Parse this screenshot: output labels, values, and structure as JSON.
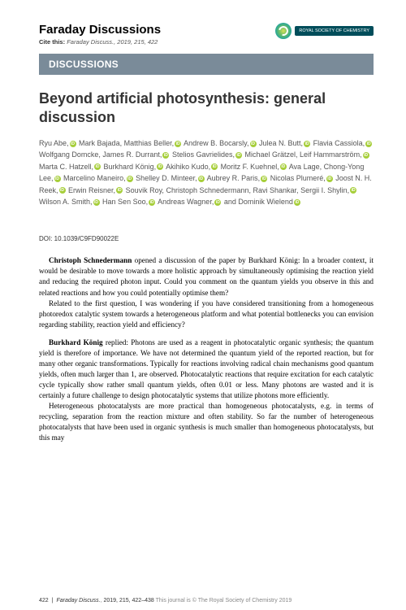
{
  "header": {
    "journal": "Faraday Discussions",
    "cite_prefix": "Cite this:",
    "cite_ref": "Faraday Discuss., 2019, 215, 422",
    "logo_text": "ROYAL SOCIETY\nOF CHEMISTRY"
  },
  "section_label": "DISCUSSIONS",
  "title": "Beyond artificial photosynthesis: general discussion",
  "authors": [
    {
      "n": "Ryu Abe",
      "o": true
    },
    {
      "n": "Mark Bajada"
    },
    {
      "n": "Matthias Beller",
      "o": true
    },
    {
      "n": "Andrew B. Bocarsly",
      "o": true
    },
    {
      "n": "Julea N. Butt",
      "o": true
    },
    {
      "n": "Flavia Cassiola",
      "o": true
    },
    {
      "n": "Wolfgang Domcke"
    },
    {
      "n": "James R. Durrant",
      "o": true
    },
    {
      "n": "Stelios Gavrielides",
      "o": true
    },
    {
      "n": "Michael Grätzel"
    },
    {
      "n": "Leif Hammarström",
      "o": true
    },
    {
      "n": "Marta C. Hatzell",
      "o": true
    },
    {
      "n": "Burkhard König",
      "o": true
    },
    {
      "n": "Akihiko Kudo",
      "o": true
    },
    {
      "n": "Moritz F. Kuehnel",
      "o": true
    },
    {
      "n": "Ava Lage"
    },
    {
      "n": "Chong-Yong Lee",
      "o": true
    },
    {
      "n": "Marcelino Maneiro",
      "o": true
    },
    {
      "n": "Shelley D. Minteer",
      "o": true
    },
    {
      "n": "Aubrey R. Paris",
      "o": true
    },
    {
      "n": "Nicolas Plumeré",
      "o": true
    },
    {
      "n": "Joost N. H. Reek",
      "o": true
    },
    {
      "n": "Erwin Reisner",
      "o": true
    },
    {
      "n": "Souvik Roy"
    },
    {
      "n": "Christoph Schnedermann"
    },
    {
      "n": "Ravi Shankar"
    },
    {
      "n": "Sergii I. Shylin",
      "o": true
    },
    {
      "n": "Wilson A. Smith",
      "o": true
    },
    {
      "n": "Han Sen Soo",
      "o": true
    },
    {
      "n": "Andreas Wagner",
      "o": true
    },
    {
      "n": "and Dominik Wielend",
      "o": true,
      "last": true
    }
  ],
  "doi": "DOI: 10.1039/C9FD90022E",
  "paragraphs": {
    "p1_lead": "Christoph Schnedermann",
    "p1": " opened a discussion of the paper by Burkhard König: In a broader context, it would be desirable to move towards a more holistic approach by simultaneously optimising the reaction yield and reducing the required photon input. Could you comment on the quantum yields you observe in this and related reactions and how you could potentially optimise them?",
    "p2": "Related to the first question, I was wondering if you have considered transitioning from a homogeneous photoredox catalytic system towards a heterogeneous platform and what potential bottlenecks you can envision regarding stability, reaction yield and efficiency?",
    "p3_lead": "Burkhard König",
    "p3": " replied: Photons are used as a reagent in photocatalytic organic synthesis; the quantum yield is therefore of importance. We have not determined the quantum yield of the reported reaction, but for many other organic transformations. Typically for reactions involving radical chain mechanisms good quantum yields, often much larger than 1, are observed. Photocatalytic reactions that require excitation for each catalytic cycle typically show rather small quantum yields, often 0.01 or less. Many photons are wasted and it is certainly a future challenge to design photocatalytic systems that utilize photons more efficiently.",
    "p4": "Heterogeneous photocatalysts are more practical than homogeneous photocatalysts, e.g. in terms of recycling, separation from the reaction mixture and often stability. So far the number of heterogeneous photocatalysts that have been used in organic synthesis is much smaller than homogeneous photocatalysts, but this may"
  },
  "footer": {
    "page": "422",
    "journal": "Faraday Discuss.",
    "ref": "2019, 215, 422–438",
    "copyright": "This journal is © The Royal Society of Chemistry 2019"
  }
}
